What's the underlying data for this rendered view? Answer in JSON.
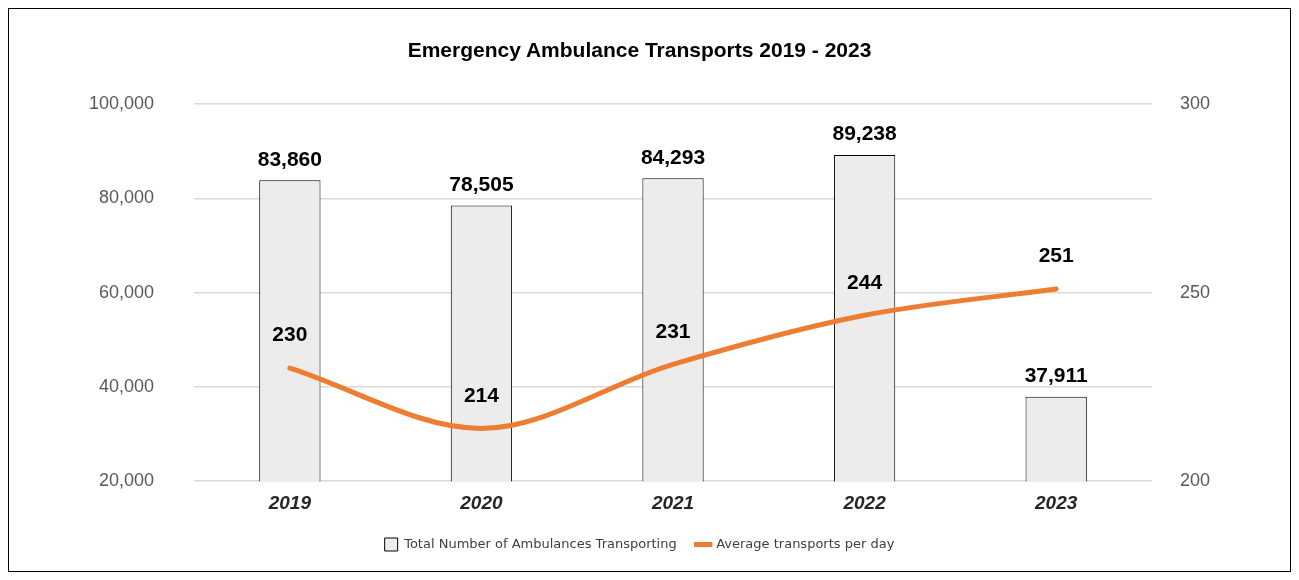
{
  "chart_data": {
    "type": "bar",
    "title": "Emergency Ambulance Transports 2019 - 2023",
    "categories": [
      "2019",
      "2020",
      "2021",
      "2022",
      "2023"
    ],
    "series": [
      {
        "name": "Total Number of Ambulances Transporting",
        "color": "#ececec",
        "values": [
          83860,
          78505,
          84293,
          89238,
          37911
        ],
        "value_labels": [
          "83,860",
          "78,505",
          "84,293",
          "89,238",
          "37,911"
        ]
      },
      {
        "name": "Average transports per day",
        "type": "line",
        "axis": "y2",
        "color": "#ed7d31",
        "values": [
          230,
          214,
          231,
          244,
          251
        ]
      }
    ],
    "ylim": [
      20000,
      100000
    ],
    "yticks": [
      {
        "value": 20000,
        "label": "20,000"
      },
      {
        "value": 40000,
        "label": "40,000"
      },
      {
        "value": 60000,
        "label": "60,000"
      },
      {
        "value": 80000,
        "label": "80,000"
      },
      {
        "value": 100000,
        "label": "100,000"
      }
    ],
    "y2lim": [
      200,
      300
    ],
    "y2ticks": [
      200,
      250,
      300
    ],
    "grid": "y",
    "legend": "bottom",
    "data_labels": true,
    "marker": "none"
  }
}
